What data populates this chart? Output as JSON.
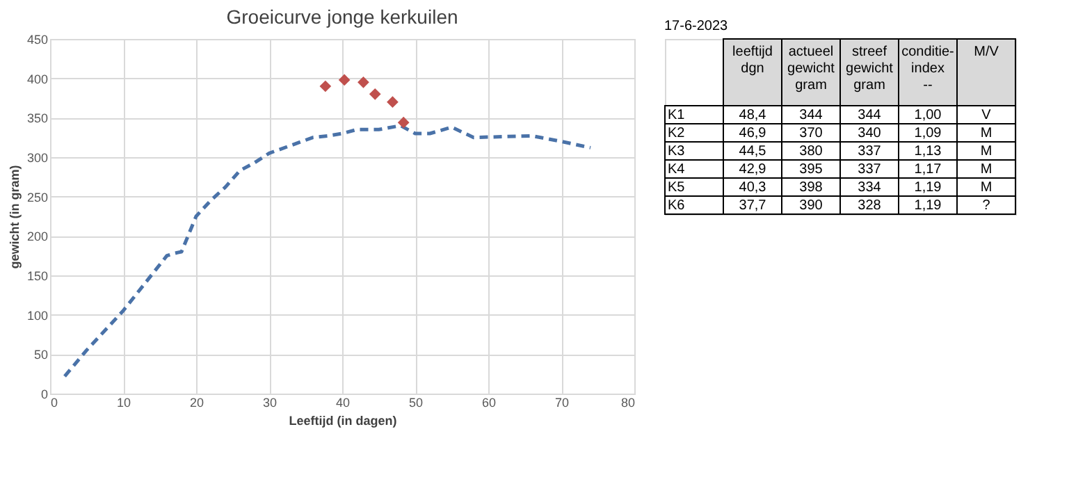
{
  "chart_data": [
    {
      "type": "line",
      "title": "Groeicurve jonge kerkuilen",
      "xlabel": "Leeftijd (in dagen)",
      "ylabel": "gewicht (in gram)",
      "xlim": [
        0,
        80
      ],
      "xticks": [
        0,
        10,
        20,
        30,
        40,
        50,
        60,
        70,
        80
      ],
      "ylim": [
        0,
        450
      ],
      "yticks": [
        0,
        50,
        100,
        150,
        200,
        250,
        300,
        350,
        400,
        450
      ],
      "grid": true,
      "series": [
        {
          "type": "line",
          "color": "#4a72a8",
          "line_style": "dashed",
          "x": [
            2,
            5,
            8,
            10,
            13,
            16,
            17,
            18,
            20,
            22,
            24,
            26,
            28,
            30,
            33,
            36,
            38,
            40,
            42,
            45,
            48,
            50,
            52,
            55,
            58,
            62,
            66,
            70,
            74
          ],
          "values": [
            22,
            55,
            85,
            105,
            140,
            175,
            178,
            180,
            225,
            245,
            262,
            283,
            293,
            305,
            315,
            325,
            327,
            330,
            335,
            335,
            340,
            330,
            330,
            338,
            325,
            326,
            327,
            320,
            312
          ]
        },
        {
          "type": "scatter",
          "color": "#c0504d",
          "marker": "diamond",
          "x": [
            48.4,
            46.9,
            44.5,
            42.9,
            40.3,
            37.7
          ],
          "values": [
            344,
            370,
            380,
            395,
            398,
            390
          ]
        }
      ]
    },
    {
      "type": "other",
      "title": "17-6-2023",
      "categories": [
        null,
        "leeftijd\ndgn",
        "actueel\ngewicht\ngram",
        "streef\ngewicht\ngram",
        "conditie-\nindex\n--",
        "M/V"
      ],
      "y_categories": [
        "K1",
        "K2",
        "K3",
        "K4",
        "K5",
        "K6"
      ],
      "cell_labels": [
        [
          "48,4",
          "344",
          "344",
          "1,00",
          "V"
        ],
        [
          "46,9",
          "370",
          "340",
          "1,09",
          "M"
        ],
        [
          "44,5",
          "380",
          "337",
          "1,13",
          "M"
        ],
        [
          "42,9",
          "395",
          "337",
          "1,17",
          "M"
        ],
        [
          "40,3",
          "398",
          "334",
          "1,19",
          "M"
        ],
        [
          "37,7",
          "390",
          "328",
          "1,19",
          "?"
        ]
      ]
    }
  ]
}
